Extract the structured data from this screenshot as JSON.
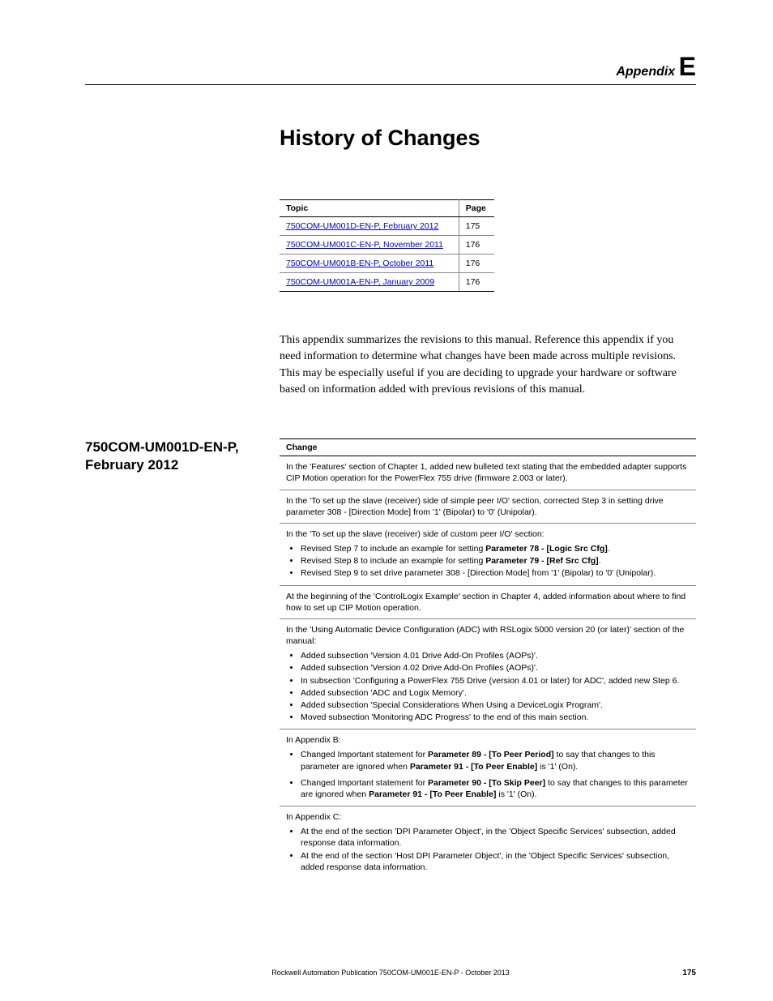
{
  "header": {
    "appendix_label": "Appendix",
    "appendix_letter": "E"
  },
  "title": "History of Changes",
  "topic_table": {
    "headers": [
      "Topic",
      "Page"
    ],
    "rows": [
      {
        "topic": "750COM-UM001D-EN-P, February 2012",
        "page": "175"
      },
      {
        "topic": "750COM-UM001C-EN-P, November 2011",
        "page": "176"
      },
      {
        "topic": "750COM-UM001B-EN-P, October 2011",
        "page": "176"
      },
      {
        "topic": "750COM-UM001A-EN-P, January 2009",
        "page": "176"
      }
    ],
    "link_color": "#0000cc"
  },
  "intro": "This appendix summarizes the revisions to this manual. Reference this appendix if you need information to determine what changes have been made across multiple revisions. This may be especially useful if you are deciding to upgrade your hardware or software based on information added with previous revisions of this manual.",
  "section_heading": "750COM-UM001D-EN-P, February 2012",
  "change_table": {
    "header": "Change",
    "rows": [
      {
        "type": "text",
        "text": "In the 'Features' section of Chapter 1, added new bulleted text stating that the embedded adapter supports CIP Motion operation for the PowerFlex 755 drive (firmware 2.003 or later)."
      },
      {
        "type": "text",
        "text": "In the 'To set up the slave (receiver) side of simple peer I/O' section, corrected Step 3 in setting drive parameter 308 - [Direction Mode] from '1' (Bipolar) to '0' (Unipolar)."
      },
      {
        "type": "list",
        "lead": "In the 'To set up the slave (receiver) side of custom peer I/O' section:",
        "items": [
          {
            "text": "Revised Step 7 to include an example for setting ",
            "bold": "Parameter 78 - [Logic Src Cfg]",
            "tail": "."
          },
          {
            "text": "Revised Step 8 to include an example for setting ",
            "bold": "Parameter 79 - [Ref Src Cfg]",
            "tail": "."
          },
          {
            "text": "Revised Step 9 to set drive parameter 308 - [Direction Mode] from '1' (Bipolar) to '0' (Unipolar).",
            "bold": "",
            "tail": ""
          }
        ]
      },
      {
        "type": "text",
        "text": "At the beginning of the 'ControlLogix Example' section in Chapter 4, added information about where to find how to set up CIP Motion operation."
      },
      {
        "type": "list",
        "lead": "In the 'Using Automatic Device Configuration (ADC) with RSLogix 5000 version 20 (or later)' section of the manual:",
        "items": [
          {
            "text": "Added subsection 'Version 4.01 Drive Add-On Profiles (AOPs)'.",
            "bold": "",
            "tail": ""
          },
          {
            "text": "Added subsection 'Version 4.02 Drive Add-On Profiles (AOPs)'.",
            "bold": "",
            "tail": ""
          },
          {
            "text": "In subsection 'Configuring a PowerFlex 755 Drive (version 4.01 or later) for ADC', added new Step 6.",
            "bold": "",
            "tail": ""
          },
          {
            "text": "Added subsection 'ADC and Logix Memory'.",
            "bold": "",
            "tail": ""
          },
          {
            "text": "Added subsection 'Special Considerations When Using a DeviceLogix Program'.",
            "bold": "",
            "tail": ""
          },
          {
            "text": "Moved subsection 'Monitoring ADC Progress' to the end of this main section.",
            "bold": "",
            "tail": ""
          }
        ]
      },
      {
        "type": "list2",
        "lead": "In Appendix B:",
        "items2": [
          {
            "pre": "Changed Important statement for ",
            "b1": "Parameter 89 - [To Peer Period]",
            "mid": " to say that changes to this parameter are ignored when ",
            "b2": "Parameter 91 - [To Peer Enable]",
            "post": " is '1' (On)."
          },
          {
            "pre": "Changed Important statement for ",
            "b1": "Parameter 90 - [To Skip Peer]",
            "mid": " to say that changes to this parameter are ignored when ",
            "b2": "Parameter 91 - [To Peer Enable]",
            "post": " is '1' (On)."
          }
        ]
      },
      {
        "type": "list",
        "lead": "In Appendix C:",
        "items": [
          {
            "text": "At the end of the section 'DPI Parameter Object', in the 'Object Specific Services' subsection, added response data information.",
            "bold": "",
            "tail": ""
          },
          {
            "text": "At the end of the section 'Host DPI Parameter Object', in the 'Object Specific Services' subsection, added response data information.",
            "bold": "",
            "tail": ""
          }
        ],
        "no_bottom_border": true
      }
    ]
  },
  "footer": {
    "publication": "Rockwell Automation Publication 750COM-UM001E-EN-P - October 2013",
    "page_number": "175"
  },
  "colors": {
    "text": "#000000",
    "link": "#0000cc",
    "border_heavy": "#000000",
    "border_light": "#888888",
    "background": "#ffffff"
  },
  "fonts": {
    "body_serif": "Georgia, Times New Roman, serif",
    "ui_sans": "Arial, Helvetica, sans-serif",
    "title_size_pt": 27,
    "section_heading_size_pt": 17,
    "table_text_size_pt": 10.5,
    "intro_size_pt": 14
  }
}
